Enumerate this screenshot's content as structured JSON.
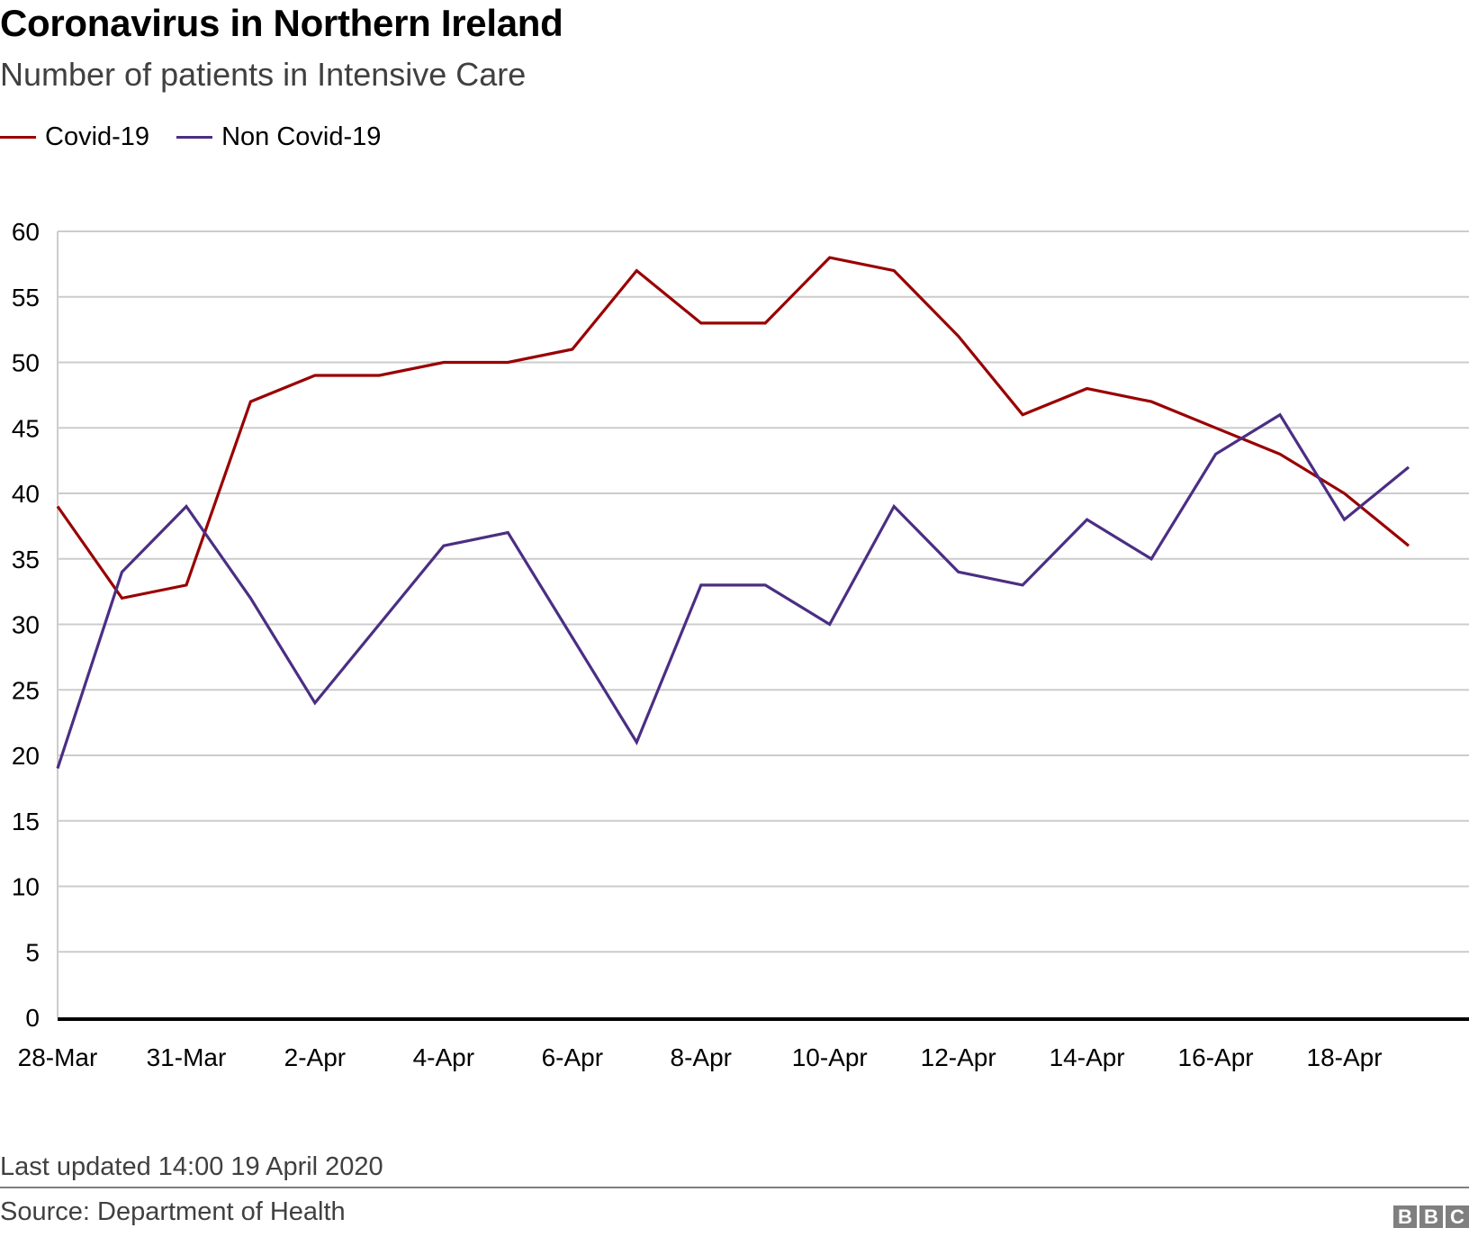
{
  "header": {
    "title": "Coronavirus in Northern Ireland",
    "subtitle": "Number of patients in Intensive Care"
  },
  "legend": [
    {
      "name": "Covid-19",
      "color": "#990000"
    },
    {
      "name": "Non Covid-19",
      "color": "#4b2e83"
    }
  ],
  "chart_data": {
    "type": "line",
    "title": "Coronavirus in Northern Ireland",
    "subtitle": "Number of patients in Intensive Care",
    "xlabel": "",
    "ylabel": "",
    "x": [
      "28-Mar",
      "30-Mar",
      "31-Mar",
      "1-Apr",
      "2-Apr",
      "3-Apr",
      "4-Apr",
      "5-Apr",
      "6-Apr",
      "7-Apr",
      "8-Apr",
      "9-Apr",
      "10-Apr",
      "11-Apr",
      "12-Apr",
      "13-Apr",
      "14-Apr",
      "15-Apr",
      "16-Apr",
      "17-Apr",
      "18-Apr",
      "19-Apr"
    ],
    "x_tick_labels": [
      "28-Mar",
      "31-Mar",
      "2-Apr",
      "4-Apr",
      "6-Apr",
      "8-Apr",
      "10-Apr",
      "12-Apr",
      "14-Apr",
      "16-Apr",
      "18-Apr"
    ],
    "x_tick_indices": [
      0,
      2,
      4,
      6,
      8,
      10,
      12,
      14,
      16,
      18,
      20
    ],
    "y_ticks": [
      0,
      5,
      10,
      15,
      20,
      25,
      30,
      35,
      40,
      45,
      50,
      55,
      60
    ],
    "ylim": [
      0,
      60
    ],
    "grid": true,
    "legend_position": "top-left",
    "series": [
      {
        "name": "Covid-19",
        "color": "#990000",
        "values": [
          39,
          32,
          33,
          47,
          49,
          49,
          50,
          50,
          51,
          57,
          53,
          53,
          58,
          57,
          52,
          46,
          48,
          47,
          45,
          43,
          40,
          36
        ]
      },
      {
        "name": "Non Covid-19",
        "color": "#4b2e83",
        "values": [
          19,
          34,
          39,
          32,
          24,
          30,
          36,
          37,
          29,
          21,
          33,
          33,
          30,
          39,
          34,
          33,
          38,
          35,
          43,
          46,
          38,
          42
        ]
      }
    ]
  },
  "footer": {
    "updated": "Last updated 14:00 19 April 2020",
    "source": "Source: Department of Health",
    "logo": [
      "B",
      "B",
      "C"
    ]
  }
}
